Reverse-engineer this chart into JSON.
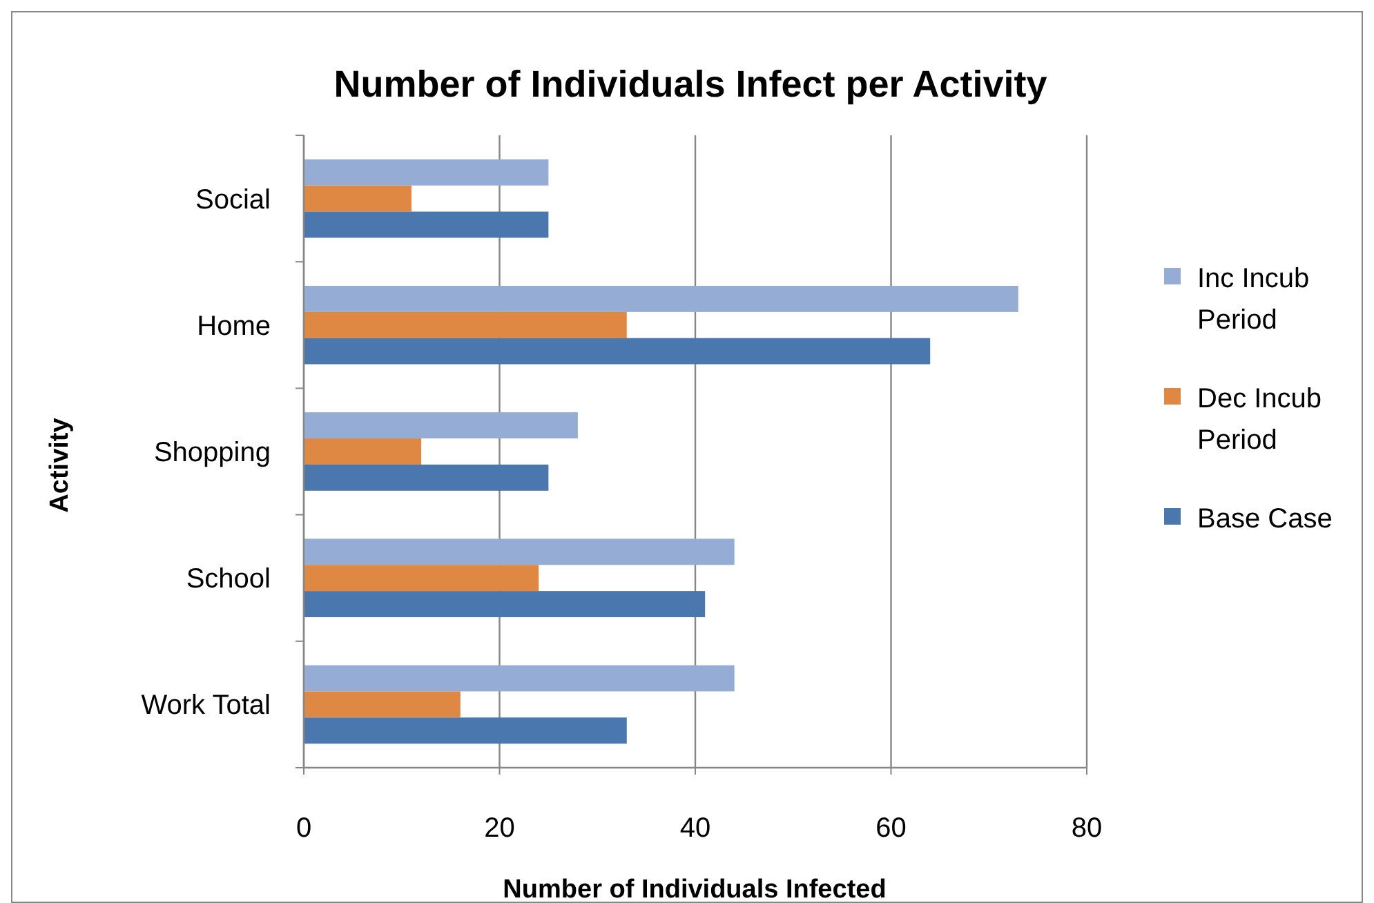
{
  "chart_data": {
    "type": "bar",
    "orientation": "horizontal",
    "title": "Number of Individuals Infect per Activity",
    "xlabel": "Number of Individuals Infected",
    "ylabel": "Activity",
    "categories": [
      "Social",
      "Home",
      "Shopping",
      "School",
      "Work Total"
    ],
    "series": [
      {
        "name": "Inc Incub Period",
        "color": "#95add5",
        "values": [
          25,
          73,
          28,
          44,
          44
        ]
      },
      {
        "name": "Dec Incub Period",
        "color": "#df8843",
        "values": [
          11,
          33,
          12,
          24,
          16
        ]
      },
      {
        "name": "Base Case",
        "color": "#4a77ad",
        "values": [
          25,
          64,
          25,
          41,
          33
        ]
      }
    ],
    "xlim": [
      0,
      80
    ],
    "xticks": [
      0,
      20,
      40,
      60,
      80
    ],
    "grid": "x",
    "legend": "right"
  }
}
